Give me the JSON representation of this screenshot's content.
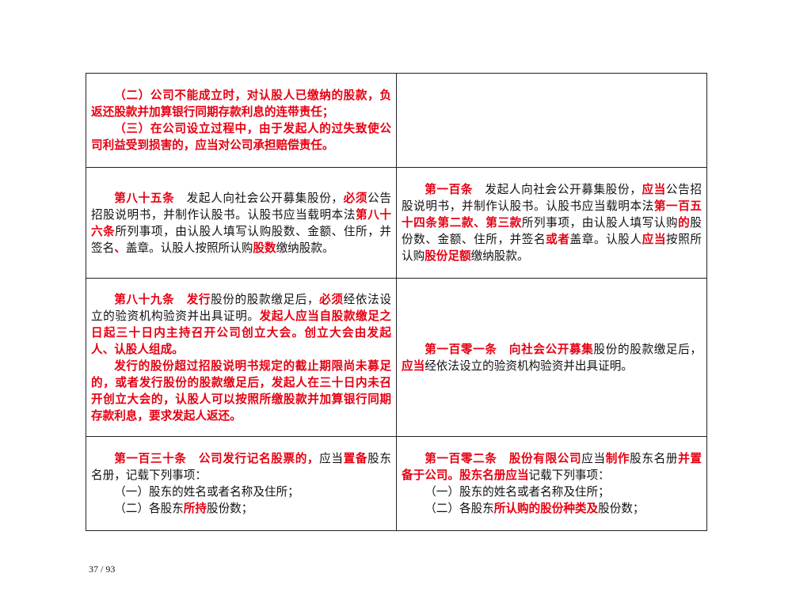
{
  "table": {
    "rows": [
      {
        "height": 119,
        "left": [
          [
            {
              "text": "（二）公司不能成立时，对认股人已缴纳的股款，负返还股款并加算银行同期存款利息的连带责任；",
              "color": "#e60012"
            }
          ],
          [
            {
              "text": "（三）在公司设立过程中，由于发起人的过失致使公司利益受到损害的，应当对公司承担赔偿责任。",
              "color": "#e60012"
            }
          ]
        ],
        "right": []
      },
      {
        "height": 140,
        "left": [
          [
            {
              "text": "第八十五条",
              "color": "#e60012"
            },
            "　发起人向社会公开募集股份，",
            {
              "text": "必须",
              "color": "#e60012"
            },
            "公告招股说明书，并制作认股书。认股书应当载明本法",
            {
              "text": "第八十六条",
              "color": "#e60012"
            },
            "所列事项，由认股人填写认购股数、金额、住所，并签名",
            {
              "text": "、",
              "color": "#e60012"
            },
            "盖章。认股人按照所认购",
            {
              "text": "股数",
              "color": "#e60012"
            },
            "缴纳股款。"
          ]
        ],
        "right": [
          [
            {
              "text": "第一百条",
              "color": "#e60012"
            },
            "　发起人向社会公开募集股份，",
            {
              "text": "应当",
              "color": "#e60012"
            },
            "公告招股说明书，并制作认股书。认股书应当载明本法",
            {
              "text": "第一百五十四条第二款、第三款",
              "color": "#e60012"
            },
            "所列事项，由认股人填写认购",
            {
              "text": "的",
              "color": "#e60012"
            },
            "股份数、金额、住所，并签名",
            {
              "text": "或者",
              "color": "#e60012"
            },
            "盖章。认股人",
            {
              "text": "应当",
              "color": "#e60012"
            },
            "按照所认购",
            {
              "text": "股份足额",
              "color": "#e60012"
            },
            "缴纳股款。"
          ]
        ]
      },
      {
        "height": 200,
        "left": [
          [
            {
              "text": "第八十九条",
              "color": "#e60012"
            },
            "　",
            {
              "text": "发行",
              "color": "#e60012"
            },
            "股份的股款缴足后，",
            {
              "text": "必须",
              "color": "#e60012"
            },
            "经依法设立的验资机构验资并出具证明。",
            {
              "text": "发起人应当自股款缴足之日起三十日内主持召开公司创立大会。创立大会由发起人、认股人组成。",
              "color": "#e60012"
            }
          ],
          [
            {
              "text": "发行的股份超过招股说明书规定的截止期限尚未募足的，或者发行股份的股款缴足后，发起人在三十日内未召开创立大会的，认股人可以按照所缴股款并加算银行同期存款利息，要求发起人返还。",
              "color": "#e60012"
            }
          ]
        ],
        "right": [
          [
            {
              "text": "第一百零一条",
              "color": "#e60012"
            },
            "　",
            {
              "text": "向社会公开募集",
              "color": "#e60012"
            },
            "股份的股款缴足后，",
            {
              "text": "应当",
              "color": "#e60012"
            },
            "经依法设立的验资机构验资并出具证明。"
          ]
        ]
      },
      {
        "height": 119,
        "left": [
          [
            {
              "text": "第一百三十条",
              "color": "#e60012"
            },
            "　",
            {
              "text": "公司发行记名股票的，",
              "color": "#e60012"
            },
            "应当",
            {
              "text": "置备",
              "color": "#e60012"
            },
            "股东名册，记载下列事项："
          ],
          [
            "（一）股东的姓名或者名称及住所；"
          ],
          [
            "（二）各股东",
            {
              "text": "所持",
              "color": "#e60012"
            },
            "股份数；"
          ]
        ],
        "right": [
          [
            {
              "text": "第一百零二条",
              "color": "#e60012"
            },
            "　",
            {
              "text": "股份有限公司",
              "color": "#e60012"
            },
            "应当",
            {
              "text": "制作",
              "color": "#e60012"
            },
            "股东名册",
            {
              "text": "并置备于公司。股东名册应当",
              "color": "#e60012"
            },
            "记载下列事项："
          ],
          [
            "（一）股东的姓名或者名称及住所；"
          ],
          [
            "（二）各股东",
            {
              "text": "所认购的股份种类及",
              "color": "#e60012"
            },
            "股份数；"
          ]
        ]
      }
    ]
  },
  "footer": {
    "page_number": "37 / 93"
  }
}
